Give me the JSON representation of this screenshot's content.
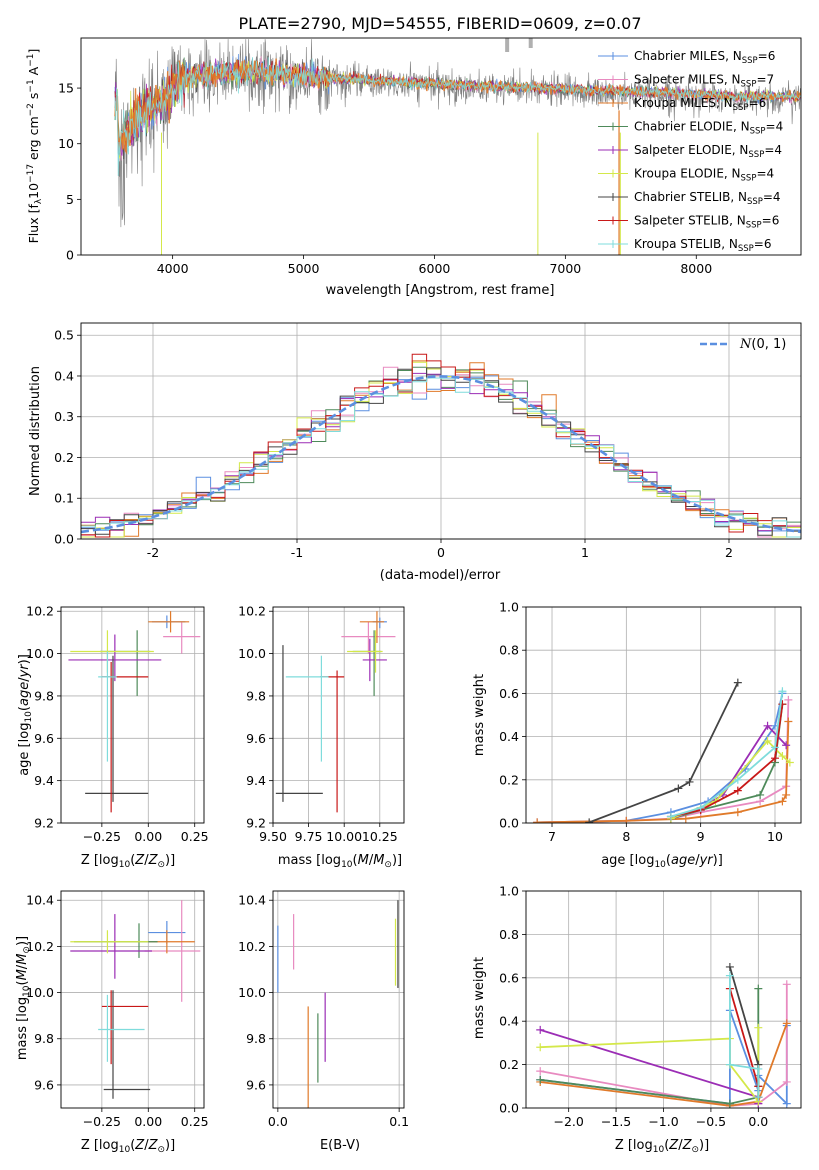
{
  "figure": {
    "title": "PLATE=2790, MJD=54555, FIBERID=0609, z=0.07"
  },
  "series_styles": [
    {
      "name": "Chabrier MILES, N$_{SSP}$=6",
      "legend_main": "Chabrier MILES, N",
      "legend_sub": "SSP",
      "legend_tail": "=6",
      "color": "#5b8fe0"
    },
    {
      "name": "Salpeter MILES, N$_{SSP}$=7",
      "legend_main": "Salpeter MILES, N",
      "legend_sub": "SSP",
      "legend_tail": "=7",
      "color": "#e88ac0"
    },
    {
      "name": "Kroupa MILES, N$_{SSP}$=6",
      "legend_main": "Kroupa MILES, N",
      "legend_sub": "SSP",
      "legend_tail": "=6",
      "color": "#e07a2a"
    },
    {
      "name": "Chabrier ELODIE, N$_{SSP}$=4",
      "legend_main": "Chabrier ELODIE, N",
      "legend_sub": "SSP",
      "legend_tail": "=4",
      "color": "#4e8a5a"
    },
    {
      "name": "Salpeter ELODIE, N$_{SSP}$=4",
      "legend_main": "Salpeter ELODIE, N",
      "legend_sub": "SSP",
      "legend_tail": "=4",
      "color": "#9b2db5"
    },
    {
      "name": "Kroupa ELODIE, N$_{SSP}$=4",
      "legend_main": "Kroupa ELODIE, N",
      "legend_sub": "SSP",
      "legend_tail": "=4",
      "color": "#d4e84a"
    },
    {
      "name": "Chabrier STELIB, N$_{SSP}$=4",
      "legend_main": "Chabrier STELIB, N",
      "legend_sub": "SSP",
      "legend_tail": "=4",
      "color": "#444444"
    },
    {
      "name": "Salpeter STELIB, N$_{SSP}$=6",
      "legend_main": "Salpeter STELIB, N",
      "legend_sub": "SSP",
      "legend_tail": "=6",
      "color": "#c81818"
    },
    {
      "name": "Kroupa STELIB, N$_{SSP}$=6",
      "legend_main": "Kroupa STELIB, N",
      "legend_sub": "SSP",
      "legend_tail": "=6",
      "color": "#7fdcdc"
    }
  ],
  "chart_data": [
    {
      "id": "spectrum",
      "type": "line",
      "xlabel": "wavelength [Angstrom, rest frame]",
      "ylabel": "Flux [f$_\\lambda$10$^{-17}$ erg cm$^{-2}$ s$^{-1}$ A$^{-1}$]",
      "ylabel_parts": {
        "a": "Flux [f",
        "b": "λ",
        "c": "10",
        "d": "−17",
        "e": " erg cm",
        "f": "−2",
        "g": " s",
        "h": "−1",
        "i": " A",
        "j": "−1",
        "k": "]"
      },
      "xlim": [
        3300,
        8800
      ],
      "ylim": [
        0,
        19.5
      ],
      "xticks": [
        4000,
        5000,
        6000,
        7000,
        8000
      ],
      "yticks": [
        0,
        5,
        10,
        15
      ],
      "grid": false,
      "legend": "top-right",
      "data_color": "#7f7f7f",
      "approx_continuum": {
        "x": [
          3580,
          3650,
          3750,
          3850,
          3950,
          4050,
          4200,
          4400,
          4600,
          4800,
          5000,
          5200,
          5500,
          5800,
          6000,
          6300,
          6600,
          6900,
          7200,
          7500,
          7800,
          8100,
          8300,
          8500,
          8800
        ],
        "y": [
          9.5,
          11.0,
          12.3,
          13.2,
          14.0,
          15.5,
          16.0,
          16.1,
          16.3,
          16.2,
          15.9,
          15.7,
          15.5,
          15.3,
          15.2,
          15.0,
          14.9,
          14.8,
          14.6,
          14.5,
          14.4,
          14.2,
          14.0,
          14.1,
          14.0
        ]
      }
    },
    {
      "id": "residual_histogram",
      "type": "bar",
      "xlabel": "(data-model)/error",
      "ylabel": "Normed distribution",
      "xlim": [
        -2.5,
        2.5
      ],
      "ylim": [
        0,
        0.53
      ],
      "xticks": [
        -2,
        -1,
        0,
        1,
        2
      ],
      "yticks": [
        0.0,
        0.1,
        0.2,
        0.3,
        0.4,
        0.5
      ],
      "grid": true,
      "legend": "top-right",
      "reference_curve": {
        "name": "$\\mathcal{N}(0,1)$",
        "label_main": "N",
        "label_tail": "(0, 1)",
        "mean": 0,
        "sigma": 1,
        "color": "#5b8fe0",
        "style": "dashed"
      },
      "bin_width": 0.1
    },
    {
      "id": "z_vs_age",
      "type": "scatter",
      "xlabel": "Z [log$_{10}$(Z/Z$_\\odot$)]",
      "ylabel": "age  [log$_{10}$(age/yr)]",
      "xlim": [
        -0.47,
        0.3
      ],
      "ylim": [
        9.2,
        10.22
      ],
      "xticks": [
        -0.25,
        0.0,
        0.25
      ],
      "xticklabels": [
        "−0.25",
        "0.00",
        "0.25"
      ],
      "yticks": [
        9.2,
        9.4,
        9.6,
        9.8,
        10.0,
        10.2
      ],
      "grid": true,
      "points": [
        {
          "x": 0.1,
          "y": 10.15,
          "xerr": [
            0.08,
            0.1
          ],
          "yerr": [
            0.03,
            0.03
          ]
        },
        {
          "x": 0.18,
          "y": 10.08,
          "xerr": [
            0.1,
            0.1
          ],
          "yerr": [
            0.08,
            0.07
          ]
        },
        {
          "x": 0.12,
          "y": 10.15,
          "xerr": [
            0.12,
            0.1
          ],
          "yerr": [
            0.05,
            0.05
          ]
        },
        {
          "x": -0.06,
          "y": 10.01,
          "xerr": [
            0.2,
            0.07
          ],
          "yerr": [
            0.21,
            0.1
          ]
        },
        {
          "x": -0.18,
          "y": 9.97,
          "xerr": [
            0.25,
            0.25
          ],
          "yerr": [
            0.1,
            0.12
          ]
        },
        {
          "x": -0.22,
          "y": 10.01,
          "xerr": [
            0.2,
            0.25
          ],
          "yerr": [
            0.1,
            0.1
          ]
        },
        {
          "x": -0.19,
          "y": 9.34,
          "xerr": [
            0.15,
            0.19
          ],
          "yerr": [
            0.04,
            0.65
          ]
        },
        {
          "x": -0.2,
          "y": 9.89,
          "xerr": [
            0.05,
            0.2
          ],
          "yerr": [
            0.64,
            0.07
          ]
        },
        {
          "x": -0.22,
          "y": 9.89,
          "xerr": [
            0.05,
            0.05
          ],
          "yerr": [
            0.4,
            0.12
          ]
        }
      ]
    },
    {
      "id": "mass_vs_age",
      "type": "scatter",
      "xlabel": "mass [log$_{10}$(M/M$_\\odot$)]",
      "ylabel": "",
      "xlim": [
        9.5,
        10.42
      ],
      "ylim": [
        9.2,
        10.22
      ],
      "xticks": [
        9.5,
        9.75,
        10.0,
        10.25
      ],
      "xticklabels": [
        "9.50",
        "9.75",
        "10.00",
        "10.25"
      ],
      "yticks": [
        9.2,
        9.4,
        9.6,
        9.8,
        10.0,
        10.2
      ],
      "grid": true,
      "points": [
        {
          "x": 10.25,
          "y": 10.15,
          "xerr": [
            0.05,
            0.05
          ],
          "yerr": [
            0.03,
            0.02
          ]
        },
        {
          "x": 10.17,
          "y": 10.08,
          "xerr": [
            0.19,
            0.19
          ],
          "yerr": [
            0.08,
            0.07
          ]
        },
        {
          "x": 10.23,
          "y": 10.15,
          "xerr": [
            0.12,
            0.05
          ],
          "yerr": [
            0.1,
            0.05
          ]
        },
        {
          "x": 10.21,
          "y": 10.01,
          "xerr": [
            0.15,
            0.05
          ],
          "yerr": [
            0.21,
            0.1
          ]
        },
        {
          "x": 10.18,
          "y": 9.97,
          "xerr": [
            0.05,
            0.12
          ],
          "yerr": [
            0.1,
            0.1
          ]
        },
        {
          "x": 10.22,
          "y": 10.01,
          "xerr": [
            0.2,
            0.05
          ],
          "yerr": [
            0.1,
            0.1
          ]
        },
        {
          "x": 9.57,
          "y": 9.34,
          "xerr": [
            0.05,
            0.28
          ],
          "yerr": [
            0.04,
            0.7
          ]
        },
        {
          "x": 9.95,
          "y": 9.89,
          "xerr": [
            0.12,
            0.05
          ],
          "yerr": [
            0.64,
            0.03
          ]
        },
        {
          "x": 9.84,
          "y": 9.89,
          "xerr": [
            0.25,
            0.05
          ],
          "yerr": [
            0.4,
            0.1
          ]
        }
      ]
    },
    {
      "id": "age_mass_weight",
      "type": "line",
      "xlabel": "age  [log$_{10}$(age/yr)]",
      "ylabel": "mass weight",
      "xlim": [
        6.65,
        10.35
      ],
      "ylim": [
        0,
        1.0
      ],
      "xticks": [
        7,
        8,
        9,
        10
      ],
      "yticks": [
        0.0,
        0.2,
        0.4,
        0.6,
        0.8,
        1.0
      ],
      "grid": true,
      "series": [
        {
          "name": "Chabrier MILES",
          "x": [
            6.8,
            8.0,
            8.6,
            9.1,
            9.6,
            10.0,
            10.1
          ],
          "y": [
            0.003,
            0.01,
            0.05,
            0.1,
            0.25,
            0.45,
            0.6
          ]
        },
        {
          "name": "Salpeter MILES",
          "x": [
            6.8,
            8.0,
            8.6,
            9.0,
            9.8,
            10.15,
            10.18
          ],
          "y": [
            0.003,
            0.01,
            0.02,
            0.05,
            0.1,
            0.17,
            0.57
          ]
        },
        {
          "name": "Kroupa MILES",
          "x": [
            6.8,
            8.0,
            8.8,
            9.5,
            10.1,
            10.15,
            10.18
          ],
          "y": [
            0.003,
            0.01,
            0.02,
            0.05,
            0.1,
            0.13,
            0.47
          ]
        },
        {
          "name": "Chabrier ELODIE",
          "x": [
            8.6,
            9.0,
            9.8,
            10.0,
            10.1
          ],
          "y": [
            0.02,
            0.06,
            0.13,
            0.28,
            0.55
          ]
        },
        {
          "name": "Salpeter ELODIE",
          "x": [
            8.6,
            9.0,
            9.3,
            9.9,
            10.15
          ],
          "y": [
            0.02,
            0.07,
            0.13,
            0.45,
            0.36
          ]
        },
        {
          "name": "Kroupa ELODIE",
          "x": [
            8.6,
            9.2,
            9.9,
            10.1,
            10.2
          ],
          "y": [
            0.02,
            0.1,
            0.38,
            0.31,
            0.28
          ]
        },
        {
          "name": "Chabrier STELIB",
          "x": [
            7.5,
            8.7,
            8.85,
            9.5
          ],
          "y": [
            0.003,
            0.16,
            0.19,
            0.65
          ]
        },
        {
          "name": "Salpeter STELIB",
          "x": [
            8.6,
            9.0,
            9.5,
            10.0,
            10.1
          ],
          "y": [
            0.03,
            0.06,
            0.15,
            0.3,
            0.55
          ]
        },
        {
          "name": "Kroupa STELIB",
          "x": [
            8.6,
            9.0,
            9.5,
            10.0,
            10.1
          ],
          "y": [
            0.03,
            0.07,
            0.2,
            0.35,
            0.61
          ]
        }
      ]
    },
    {
      "id": "z_vs_mass",
      "type": "scatter",
      "xlabel": "Z [log$_{10}$(Z/Z$_\\odot$)]",
      "ylabel": "mass [log$_{10}$(M/M$_\\odot$)]",
      "xlim": [
        -0.47,
        0.3
      ],
      "ylim": [
        9.5,
        10.44
      ],
      "xticks": [
        -0.25,
        0.0,
        0.25
      ],
      "xticklabels": [
        "−0.25",
        "0.00",
        "0.25"
      ],
      "yticks": [
        9.6,
        9.8,
        10.0,
        10.2,
        10.4
      ],
      "grid": true,
      "points": [
        {
          "x": 0.1,
          "y": 10.26,
          "xerr": [
            0.1,
            0.1
          ],
          "yerr": [
            0.05,
            0.05
          ]
        },
        {
          "x": 0.18,
          "y": 10.18,
          "xerr": [
            0.2,
            0.1
          ],
          "yerr": [
            0.22,
            0.22
          ]
        },
        {
          "x": 0.1,
          "y": 10.22,
          "xerr": [
            0.1,
            0.15
          ],
          "yerr": [
            0.05,
            0.05
          ]
        },
        {
          "x": -0.05,
          "y": 10.22,
          "xerr": [
            0.35,
            0.1
          ],
          "yerr": [
            0.07,
            0.08
          ]
        },
        {
          "x": -0.18,
          "y": 10.18,
          "xerr": [
            0.24,
            0.2
          ],
          "yerr": [
            0.12,
            0.16
          ]
        },
        {
          "x": -0.22,
          "y": 10.22,
          "xerr": [
            0.2,
            0.22
          ],
          "yerr": [
            0.05,
            0.05
          ]
        },
        {
          "x": -0.19,
          "y": 9.58,
          "xerr": [
            0.05,
            0.2
          ],
          "yerr": [
            0.04,
            0.43
          ]
        },
        {
          "x": -0.2,
          "y": 9.94,
          "xerr": [
            0.05,
            0.2
          ],
          "yerr": [
            0.25,
            0.07
          ]
        },
        {
          "x": -0.22,
          "y": 9.84,
          "xerr": [
            0.05,
            0.2
          ],
          "yerr": [
            0.14,
            0.15
          ]
        }
      ]
    },
    {
      "id": "ebv_vs_mass",
      "type": "scatter",
      "xlabel": "E(B-V)",
      "ylabel": "",
      "xlim": [
        -0.004,
        0.104
      ],
      "ylim": [
        9.5,
        10.44
      ],
      "xticks": [
        0.0,
        0.1
      ],
      "xticklabels": [
        "0.0",
        "0.1"
      ],
      "yticks": [
        9.6,
        9.8,
        10.0,
        10.2,
        10.4
      ],
      "grid": true,
      "points": [
        {
          "x": 0.0,
          "y": 10.15,
          "yerr": [
            0.15,
            0.14
          ]
        },
        {
          "x": 0.013,
          "y": 10.2,
          "yerr": [
            0.1,
            0.14
          ]
        },
        {
          "x": 0.025,
          "y": 9.7,
          "yerr": [
            0.25,
            0.24
          ]
        },
        {
          "x": 0.033,
          "y": 9.75,
          "yerr": [
            0.14,
            0.16
          ]
        },
        {
          "x": 0.039,
          "y": 9.85,
          "yerr": [
            0.15,
            0.15
          ]
        },
        {
          "x": 0.097,
          "y": 10.18,
          "yerr": [
            0.15,
            0.14
          ]
        },
        {
          "x": 0.099,
          "y": 10.2,
          "yerr": [
            0.18,
            0.2
          ]
        }
      ]
    },
    {
      "id": "z_mass_weight",
      "type": "line",
      "xlabel": "Z [log$_{10}$(Z/Z$_\\odot$)]",
      "ylabel": "mass weight",
      "xlim": [
        -2.45,
        0.45
      ],
      "ylim": [
        0,
        1.0
      ],
      "xticks": [
        -2.0,
        -1.5,
        -1.0,
        -0.5,
        0.0
      ],
      "xticklabels": [
        "−2.0",
        "−1.5",
        "−1.0",
        "−0.5",
        "0.0"
      ],
      "yticks": [
        0.0,
        0.2,
        0.4,
        0.6,
        0.8,
        1.0
      ],
      "grid": true,
      "series": [
        {
          "name": "Chabrier MILES",
          "x": [
            -2.3,
            -0.3,
            -0.3,
            0.0,
            0.0,
            0.3,
            0.3
          ],
          "y": [
            0.13,
            0.02,
            0.45,
            0.08,
            0.15,
            0.02,
            0.38
          ]
        },
        {
          "name": "Salpeter MILES",
          "x": [
            -2.3,
            -0.3,
            0.0,
            0.3,
            0.3
          ],
          "y": [
            0.17,
            0.01,
            0.02,
            0.12,
            0.57
          ]
        },
        {
          "name": "Kroupa MILES",
          "x": [
            -2.3,
            -0.3,
            0.0,
            0.3
          ],
          "y": [
            0.12,
            0.01,
            0.03,
            0.39
          ]
        },
        {
          "name": "Chabrier ELODIE",
          "x": [
            -2.3,
            -0.3,
            0.0,
            0.0
          ],
          "y": [
            0.13,
            0.02,
            0.05,
            0.55
          ]
        },
        {
          "name": "Salpeter ELODIE",
          "x": [
            -2.3,
            0.0,
            0.0
          ],
          "y": [
            0.36,
            0.05,
            0.02
          ]
        },
        {
          "name": "Kroupa ELODIE",
          "x": [
            -2.3,
            -0.3,
            -0.3,
            0.0,
            0.0
          ],
          "y": [
            0.28,
            0.32,
            0.2,
            0.03,
            0.37
          ]
        },
        {
          "name": "Chabrier STELIB",
          "x": [
            -0.3,
            0.0,
            0.0
          ],
          "y": [
            0.65,
            0.2,
            0.1
          ]
        },
        {
          "name": "Salpeter STELIB",
          "x": [
            -0.3,
            0.0,
            0.0
          ],
          "y": [
            0.55,
            0.1,
            0.05
          ]
        },
        {
          "name": "Kroupa STELIB",
          "x": [
            -0.3,
            -0.3,
            0.0,
            0.0
          ],
          "y": [
            0.61,
            0.2,
            0.18,
            0.05
          ]
        }
      ]
    }
  ]
}
